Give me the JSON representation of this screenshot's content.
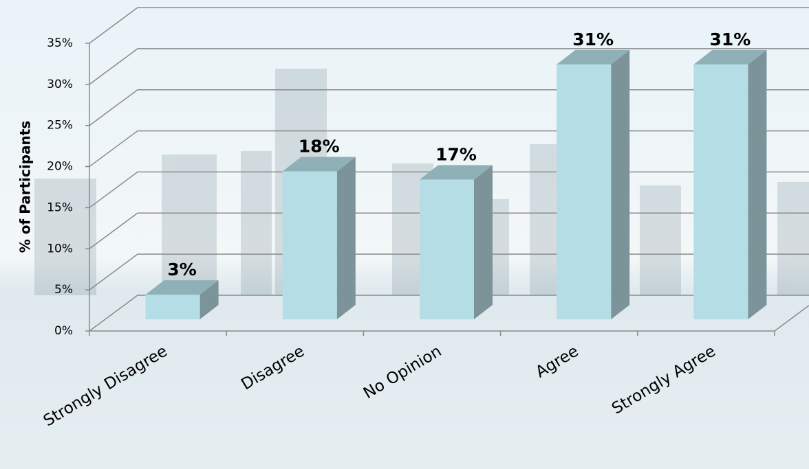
{
  "chart_data": {
    "type": "bar3d",
    "y_axis_label": "% of Participants",
    "categories": [
      "Strongly Disagree",
      "Disagree",
      "No Opinion",
      "Agree",
      "Strongly Agree"
    ],
    "values": [
      3,
      18,
      17,
      31,
      31
    ],
    "value_labels": [
      "3%",
      "18%",
      "17%",
      "31%",
      "31%"
    ],
    "color": "#b5dde6",
    "ylim": [
      0,
      35
    ],
    "yticks": [
      {
        "value": 0,
        "label": "0%"
      },
      {
        "value": 5,
        "label": "5%"
      },
      {
        "value": 10,
        "label": "10%"
      },
      {
        "value": 15,
        "label": "15%"
      },
      {
        "value": 20,
        "label": "20%"
      },
      {
        "value": 25,
        "label": "25%"
      },
      {
        "value": 30,
        "label": "30%"
      },
      {
        "value": 35,
        "label": "35%"
      }
    ],
    "grid": true
  }
}
